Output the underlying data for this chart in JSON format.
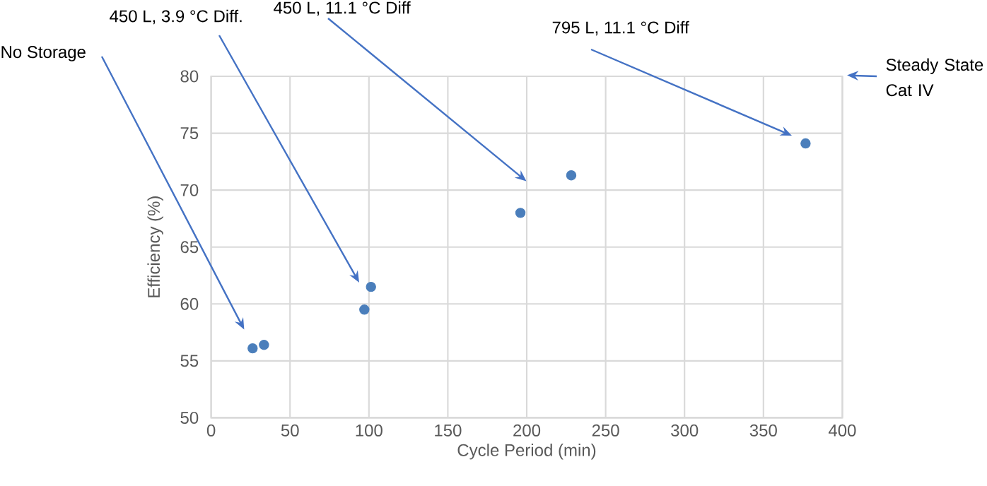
{
  "chart_data": {
    "type": "scatter",
    "xlabel": "Cycle Period (min)",
    "ylabel": "Efficiency (%)",
    "x": [
      26.3,
      33.5,
      97.1,
      101.3,
      196,
      228.2,
      376.7
    ],
    "values": [
      56.1,
      56.4,
      59.5,
      61.5,
      68.0,
      71.3,
      74.1
    ],
    "color": "#4a7ebb",
    "marker": "circle",
    "grid": true,
    "xlim": [
      0,
      400
    ],
    "xticks": [
      0,
      50,
      100,
      150,
      200,
      250,
      300,
      350,
      400
    ],
    "ylim": [
      50,
      80
    ],
    "yticks": [
      50,
      55,
      60,
      65,
      70,
      75,
      80
    ],
    "annotations": [
      "No Storage",
      "450 L, 3.9 °C Diff.",
      "450 L, 11.1 °C Diff",
      "795 L, 11.1 °C Diff",
      "Steady State Cat IV"
    ]
  }
}
